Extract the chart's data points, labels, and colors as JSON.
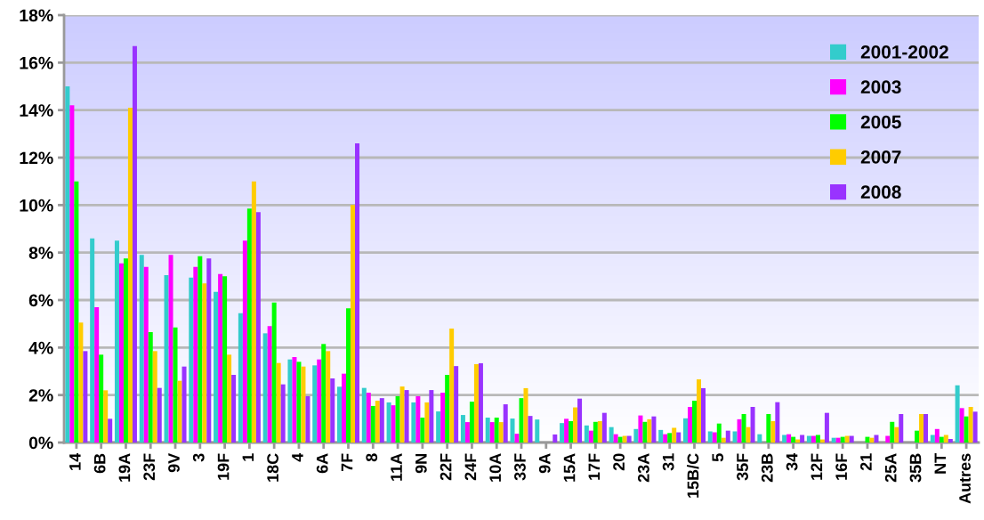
{
  "chart_data": {
    "type": "bar",
    "categories": [
      "14",
      "6B",
      "19A",
      "23F",
      "9V",
      "3",
      "19F",
      "1",
      "18C",
      "4",
      "6A",
      "7F",
      "8",
      "11A",
      "9N",
      "22F",
      "24F",
      "10A",
      "33F",
      "9A",
      "15A",
      "17F",
      "20",
      "23A",
      "31",
      "15B/C",
      "5",
      "35F",
      "23B",
      "34",
      "12F",
      "16F",
      "21",
      "25A",
      "35B",
      "NT",
      "Autres"
    ],
    "series": [
      {
        "name": "2001-2002",
        "color": "#33cccc",
        "values": [
          15.0,
          8.6,
          8.5,
          7.9,
          7.05,
          6.95,
          6.35,
          5.45,
          4.6,
          3.5,
          3.25,
          2.35,
          2.3,
          1.69,
          1.69,
          1.31,
          1.16,
          1.05,
          1.01,
          0.97,
          0.82,
          0.72,
          0.65,
          0.57,
          0.53,
          1.02,
          0.47,
          0.47,
          0.35,
          0.32,
          0.28,
          0.2,
          0,
          0,
          0,
          0.32,
          2.41
        ]
      },
      {
        "name": "2003",
        "color": "#ff00ff",
        "values": [
          14.2,
          5.7,
          7.55,
          7.4,
          7.9,
          7.4,
          7.1,
          8.5,
          4.9,
          3.6,
          3.5,
          2.9,
          2.1,
          1.57,
          1.95,
          2.1,
          0.86,
          0.86,
          0.37,
          0,
          1.0,
          0.5,
          0.35,
          1.14,
          0.35,
          1.5,
          0.43,
          0.98,
          0,
          0.35,
          0.28,
          0.2,
          0,
          0.28,
          0,
          0.57,
          1.45
        ]
      },
      {
        "name": "2005",
        "color": "#00ff00",
        "values": [
          11.0,
          3.7,
          7.75,
          4.65,
          4.85,
          7.85,
          7.0,
          9.85,
          5.9,
          3.4,
          4.15,
          5.65,
          1.54,
          1.95,
          1.05,
          2.85,
          1.72,
          1.05,
          1.87,
          0,
          0.9,
          0.87,
          0.24,
          0.87,
          0.4,
          1.76,
          0.8,
          1.2,
          1.2,
          0.24,
          0.32,
          0.24,
          0.24,
          0.87,
          0.5,
          0.24,
          1.1
        ]
      },
      {
        "name": "2007",
        "color": "#ffcc00",
        "values": [
          5.05,
          2.2,
          14.1,
          3.85,
          2.6,
          6.7,
          3.7,
          11.0,
          3.35,
          3.2,
          3.85,
          10.0,
          1.76,
          2.36,
          1.69,
          4.8,
          3.3,
          0.86,
          2.29,
          0,
          1.48,
          0.9,
          0.28,
          0.98,
          0.62,
          2.66,
          0.2,
          0.65,
          0.9,
          0.13,
          0.13,
          0.28,
          0.2,
          0.65,
          1.2,
          0.32,
          1.5
        ]
      },
      {
        "name": "2008",
        "color": "#9933ff",
        "values": [
          3.85,
          1.0,
          16.7,
          2.3,
          3.2,
          7.75,
          2.85,
          9.7,
          2.45,
          1.95,
          2.7,
          12.6,
          1.87,
          2.21,
          2.21,
          3.22,
          3.34,
          1.61,
          1.12,
          0.34,
          1.85,
          1.25,
          0.28,
          1.1,
          0.43,
          2.29,
          0.5,
          1.5,
          1.7,
          0.32,
          1.25,
          0.28,
          0.32,
          1.2,
          1.2,
          0.15,
          1.3
        ]
      }
    ],
    "ylim": [
      0,
      18
    ],
    "yticks": [
      {
        "value": 0,
        "label": "0%"
      },
      {
        "value": 2,
        "label": "2%"
      },
      {
        "value": 4,
        "label": "4%"
      },
      {
        "value": 6,
        "label": "6%"
      },
      {
        "value": 8,
        "label": "8%"
      },
      {
        "value": 10,
        "label": "10%"
      },
      {
        "value": 12,
        "label": "12%"
      },
      {
        "value": 14,
        "label": "14%"
      },
      {
        "value": 16,
        "label": "16%"
      },
      {
        "value": 18,
        "label": "18%"
      }
    ],
    "grid": "y",
    "legend": "top right"
  }
}
